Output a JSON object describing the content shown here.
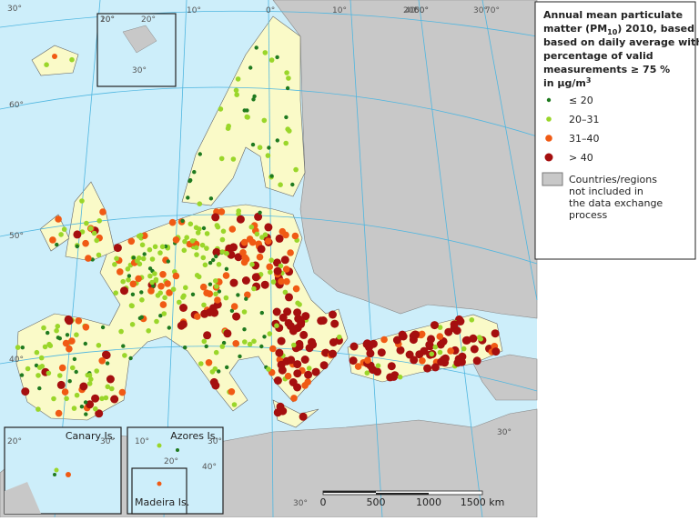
{
  "legend": {
    "title_lines": [
      "Annual mean particulate",
      "based on daily average with",
      "percentage of valid",
      "measurements  ≥ 75 %"
    ],
    "title_pm": {
      "before": "matter (PM",
      "sub": "10",
      "after": ") 2010, based"
    },
    "unit": {
      "before": "in µg/m",
      "sup": "3"
    },
    "items": [
      {
        "label": "≤ 20",
        "color": "#1f7a1f"
      },
      {
        "label": "20–31",
        "color": "#9ad62a"
      },
      {
        "label": "31–40",
        "color": "#f05a14"
      },
      {
        "label": "> 40",
        "color": "#a50f0f"
      }
    ],
    "excluded_lines": [
      "Countries/regions",
      "not included in",
      "the data exchange",
      "process"
    ]
  },
  "insets": [
    "Canary Is.",
    "Azores Is.",
    "Madeira Is."
  ],
  "scale_labels": [
    "0",
    "500",
    "1000",
    "1500 km"
  ],
  "graticule_labels": [
    "30°",
    "20°",
    "10°",
    "0°",
    "10°",
    "20°",
    "30°",
    "40°",
    "50°",
    "60°",
    "70°",
    "60°",
    "50°",
    "40°",
    "30°",
    "10°",
    "20°",
    "30°",
    "20°",
    "30°",
    "10°",
    "20°",
    "30°",
    "40°",
    "30°"
  ]
}
